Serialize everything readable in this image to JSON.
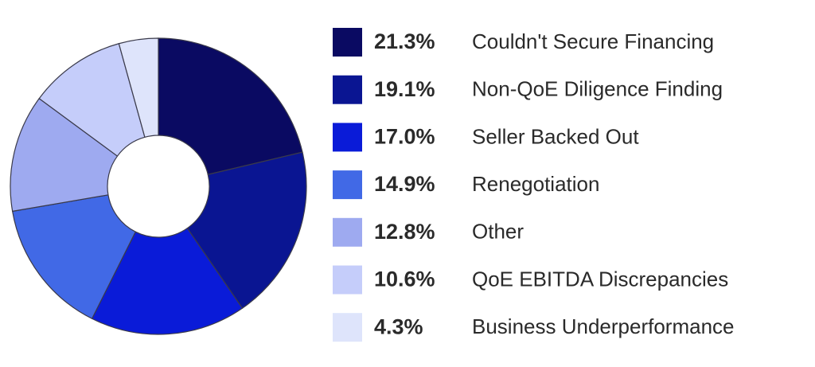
{
  "chart_data": {
    "type": "donut",
    "categories": [
      "Couldn't Secure Financing",
      "Non-QoE Diligence Finding",
      "Seller Backed Out",
      "Renegotiation",
      "Other",
      "QoE EBITDA Discrepancies",
      "Business Underperformance"
    ],
    "values": [
      21.3,
      19.1,
      17.0,
      14.9,
      12.8,
      10.6,
      4.3
    ],
    "value_labels": [
      "21.3%",
      "19.1%",
      "17.0%",
      "14.9%",
      "12.8%",
      "10.6%",
      "4.3%"
    ],
    "colors": [
      "#0a0a62",
      "#0a1592",
      "#0a1bd8",
      "#4169e6",
      "#9eaaf0",
      "#c5cdfa",
      "#dee4fb"
    ]
  }
}
